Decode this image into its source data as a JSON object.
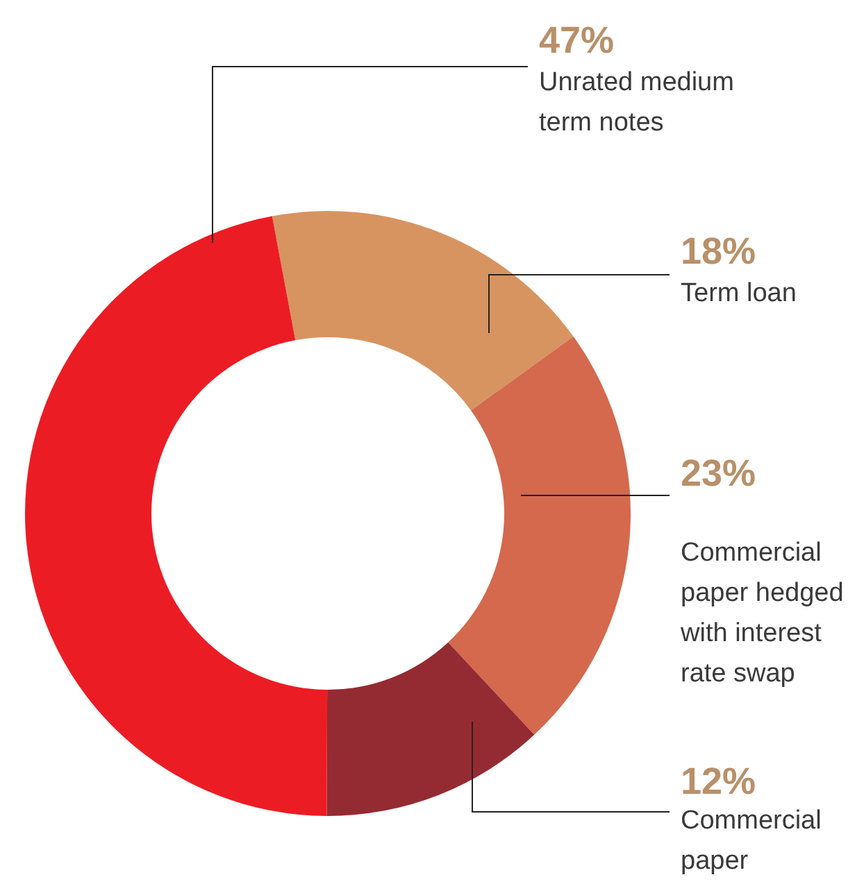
{
  "chart_data": {
    "type": "donut",
    "categories": [
      "Term loan",
      "Commercial paper hedged with interest rate swap",
      "Commercial paper",
      "Unrated medium term notes"
    ],
    "values": [
      18,
      23,
      12,
      47
    ],
    "colors": [
      "#d79461",
      "#d4694e",
      "#952b32",
      "#ec1c24"
    ],
    "value_labels": [
      "18%",
      "23%",
      "12%",
      "47%"
    ]
  }
}
